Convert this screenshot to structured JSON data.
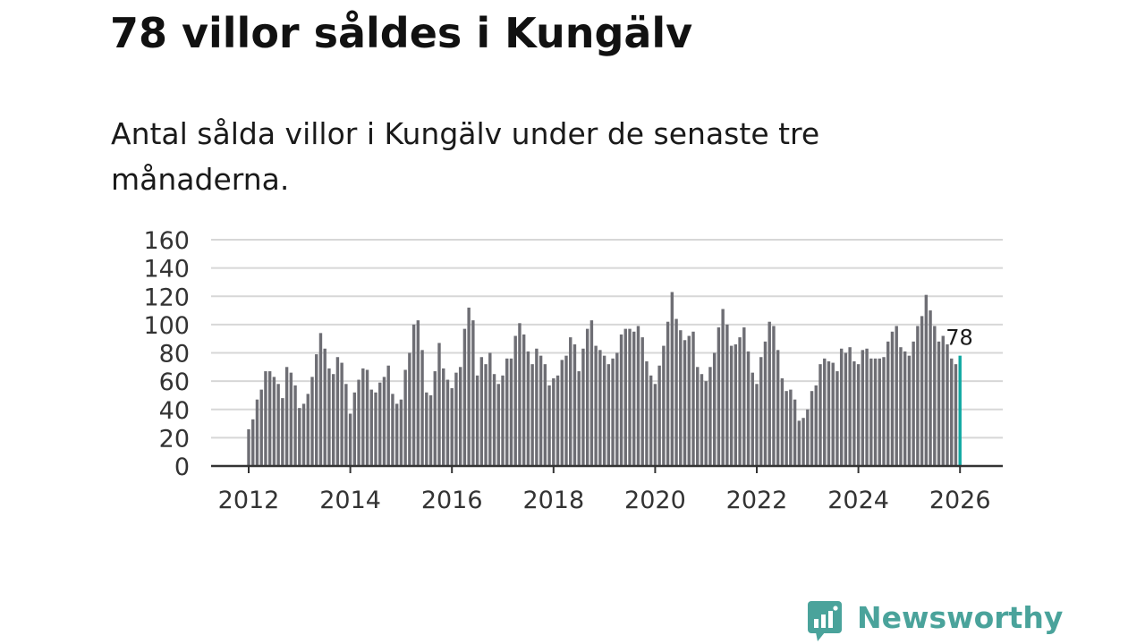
{
  "title": "78 villor såldes i Kungälv",
  "subtitle": "Antal sålda villor i Kungälv under de senaste tre månaderna.",
  "brand": {
    "name": "Newsworthy",
    "color": "#4aa39b"
  },
  "colors": {
    "bar": "#6e6e74",
    "highlight": "#10a8a2",
    "grid": "#d7d7d7",
    "axis": "#333333"
  },
  "chart_data": {
    "type": "bar",
    "title": "Antal sålda villor i Kungälv under de senaste tre månaderna.",
    "xlabel": "",
    "ylabel": "",
    "ylim": [
      0,
      160
    ],
    "yticks": [
      0,
      20,
      40,
      60,
      80,
      100,
      120,
      140,
      160
    ],
    "xticks": [
      "2012",
      "2014",
      "2016",
      "2018",
      "2020",
      "2022",
      "2024",
      "2026"
    ],
    "start": "2012-01",
    "frequency": "monthly",
    "grid": true,
    "highlight_label": "78",
    "values": [
      26,
      33,
      47,
      54,
      67,
      67,
      63,
      58,
      48,
      70,
      66,
      57,
      41,
      44,
      51,
      63,
      79,
      94,
      83,
      69,
      65,
      77,
      73,
      58,
      37,
      52,
      61,
      69,
      68,
      54,
      52,
      59,
      63,
      71,
      51,
      44,
      47,
      68,
      80,
      100,
      103,
      82,
      52,
      50,
      67,
      87,
      69,
      61,
      55,
      66,
      70,
      97,
      112,
      103,
      64,
      77,
      72,
      80,
      65,
      58,
      64,
      76,
      76,
      92,
      101,
      93,
      81,
      72,
      83,
      78,
      72,
      57,
      62,
      64,
      75,
      78,
      91,
      86,
      67,
      83,
      97,
      103,
      85,
      82,
      78,
      72,
      76,
      80,
      93,
      97,
      97,
      95,
      99,
      91,
      74,
      64,
      58,
      71,
      85,
      102,
      123,
      104,
      96,
      89,
      92,
      95,
      70,
      65,
      60,
      70,
      80,
      98,
      111,
      100,
      85,
      86,
      91,
      98,
      81,
      66,
      58,
      77,
      88,
      102,
      99,
      82,
      62,
      53,
      54,
      47,
      32,
      34,
      40,
      53,
      57,
      72,
      76,
      74,
      73,
      67,
      83,
      80,
      84,
      74,
      72,
      82,
      83,
      76,
      76,
      76,
      77,
      88,
      95,
      99,
      84,
      81,
      78,
      88,
      99,
      106,
      121,
      110,
      99,
      88,
      92,
      86,
      76,
      72,
      78
    ]
  }
}
